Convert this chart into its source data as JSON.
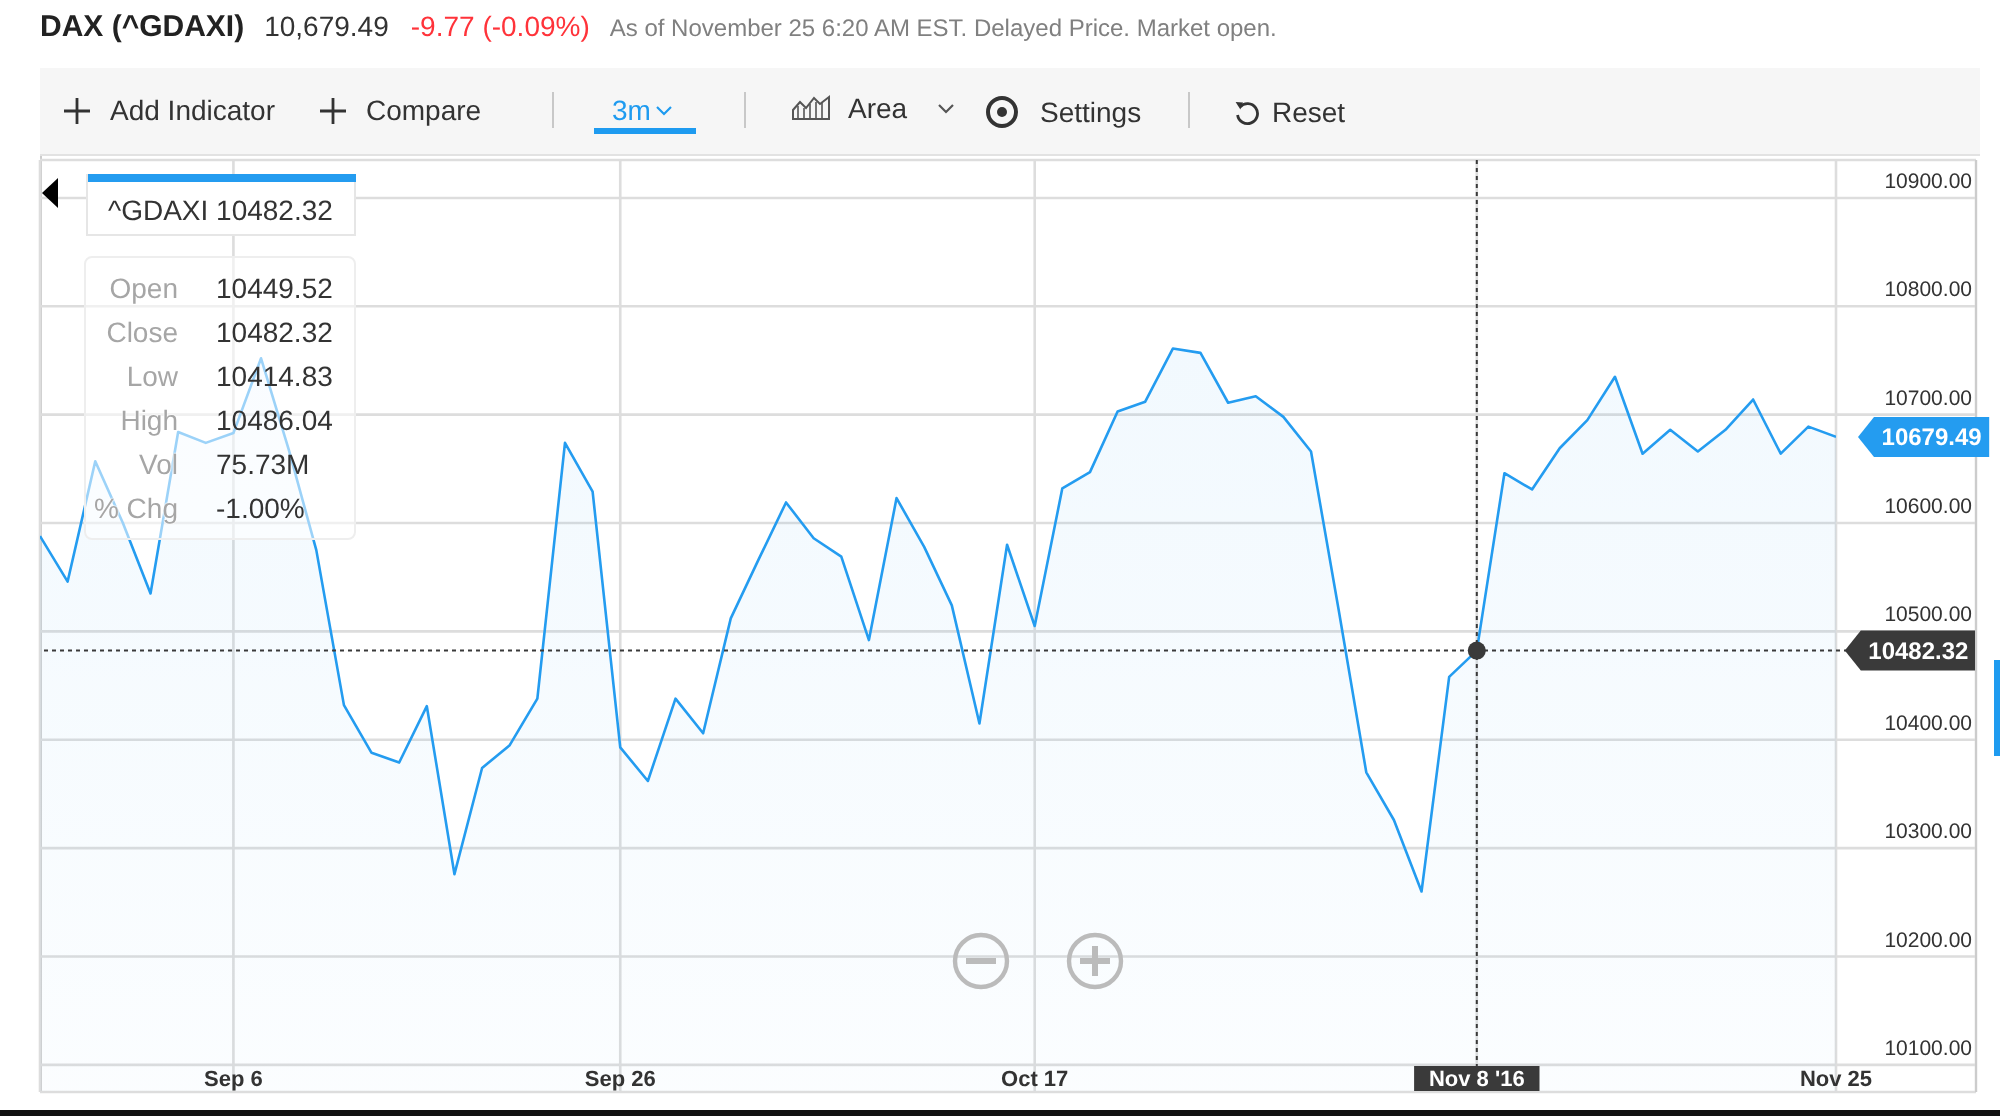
{
  "chart_data": {
    "type": "area",
    "title": "DAX (^GDAXI)",
    "categories": [
      null,
      null,
      null,
      null,
      null,
      null,
      null,
      "Sep 6",
      null,
      null,
      null,
      null,
      null,
      null,
      null,
      null,
      null,
      null,
      null,
      null,
      null,
      "Sep 26",
      null,
      null,
      null,
      null,
      null,
      null,
      null,
      null,
      null,
      null,
      null,
      null,
      null,
      null,
      "Oct 17",
      null,
      null,
      null,
      null,
      null,
      null,
      null,
      null,
      null,
      null,
      null,
      null,
      null,
      null,
      null,
      "Nov 8 '16",
      null,
      null,
      null,
      null,
      null,
      null,
      null,
      null,
      null,
      null,
      null,
      null,
      "Nov 25"
    ],
    "series": [
      {
        "name": "^GDAXI",
        "color": "#249cf0",
        "values": [
          10588,
          10546,
          10657,
          10600,
          10535,
          10684,
          10674,
          10683,
          10752,
          10668,
          10575,
          10432,
          10388,
          10379,
          10431,
          10276,
          10374,
          10395,
          10438,
          10674,
          10629,
          10393,
          10362,
          10438,
          10406,
          10512,
          10566,
          10619,
          10586,
          10569,
          10492,
          10623,
          10578,
          10524,
          10415,
          10580,
          10505,
          10632,
          10647,
          10703,
          10712,
          10761,
          10757,
          10711,
          10717,
          10698,
          10666,
          10520,
          10370,
          10326,
          10260,
          10458,
          10482.32,
          10646,
          10631,
          10669,
          10695,
          10735,
          10664,
          10686,
          10666,
          10686,
          10714,
          10664,
          10689,
          10679.49
        ]
      },
      {
        "type": "scatter",
        "x": [
          "Nov 8 '16"
        ],
        "values": [
          10482.32
        ],
        "color": "#3a3a3a",
        "marker": "circle"
      }
    ],
    "ylim": [
      10075,
      10935
    ],
    "yticks": [
      {
        "value": 10100,
        "label": "10100.00"
      },
      {
        "value": 10200,
        "label": "10200.00"
      },
      {
        "value": 10300,
        "label": "10300.00"
      },
      {
        "value": 10400,
        "label": "10400.00"
      },
      {
        "value": 10500,
        "label": "10500.00"
      },
      {
        "value": 10600,
        "label": "10600.00"
      },
      {
        "value": 10700,
        "label": "10700.00"
      },
      {
        "value": 10800,
        "label": "10800.00"
      },
      {
        "value": 10900,
        "label": "10900.00"
      }
    ],
    "grid": true,
    "legend": "top left",
    "ref_lines": [
      {
        "axis": "y",
        "value": 10482.32,
        "label": "10482.32",
        "color": "#3a3a3a",
        "line_style": "dotted"
      },
      {
        "axis": "x",
        "value": "Nov 8 '16",
        "color": "#3a3a3a",
        "line_style": "dotted"
      }
    ],
    "annotations": [
      "10,679.49",
      "-9.77 (-0.09%)",
      "As of November 25 6:20 AM EST. Delayed Price. Market open.",
      "Add Indicator",
      "Compare",
      "3m",
      "Area",
      "Settings",
      "Reset",
      "10482.32",
      "Open",
      "10449.52",
      "Close",
      "10482.32",
      "Low",
      "10414.83",
      "High",
      "10486.04",
      "Vol",
      "75.73M",
      "% Chg",
      "-1.00%",
      {
        "text": "10679.49",
        "x": "Nov 25",
        "y": 10679.49
      }
    ]
  }
}
